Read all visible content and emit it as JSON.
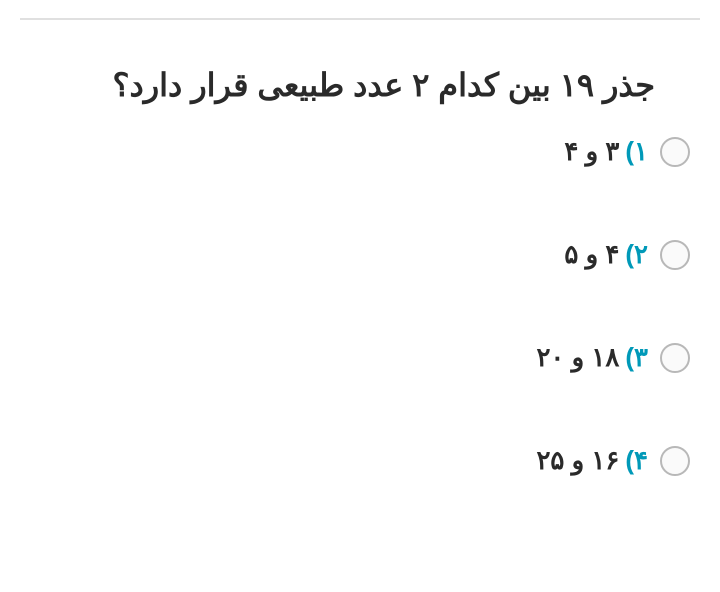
{
  "question": {
    "text": "جذر ۱۹ بین کدام ۲ عدد طبیعی قرار دارد؟",
    "text_color": "#2a2a2a",
    "fontsize": 32
  },
  "options": [
    {
      "number": "۱)",
      "text": "۳ و ۴"
    },
    {
      "number": "۲)",
      "text": "۴ و ۵"
    },
    {
      "number": "۳)",
      "text": "۱۸ و ۲۰"
    },
    {
      "number": "۴)",
      "text": "۱۶ و ۲۵"
    }
  ],
  "styling": {
    "option_number_color": "#0099b8",
    "option_text_color": "#2a2a2a",
    "radio_border_color": "#b8b8b8",
    "background_color": "#ffffff",
    "divider_color": "#e0e0e0"
  }
}
